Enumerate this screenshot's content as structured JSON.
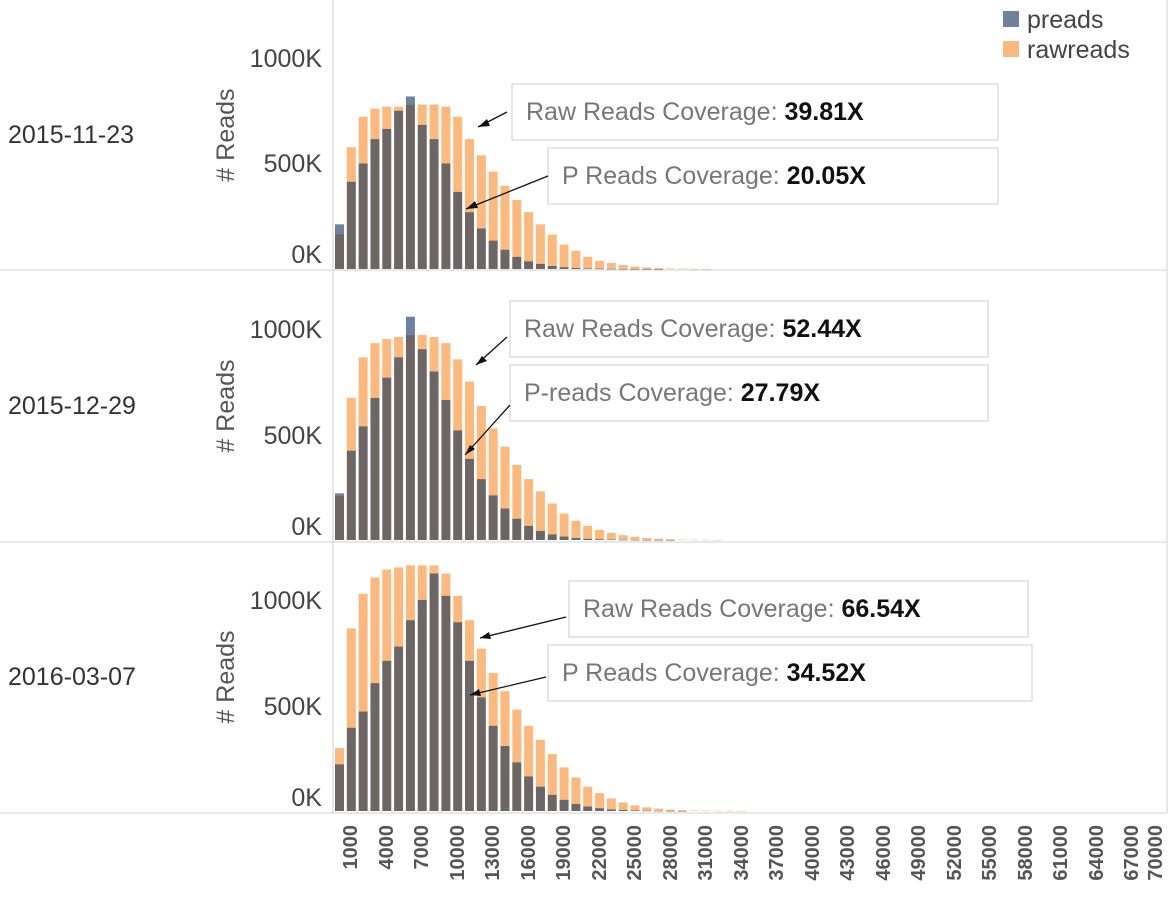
{
  "colors": {
    "preads": "#6e819e",
    "rawreads": "#fdb97d",
    "overlap": "#6e6565",
    "grid": "#d0d0d0",
    "annotation_border": "#cccccc"
  },
  "legend": [
    {
      "name": "preads",
      "color": "#6e819e"
    },
    {
      "name": "rawreads",
      "color": "#fdb97d"
    }
  ],
  "chart_data": {
    "type": "bar",
    "title": "",
    "xlabel": "",
    "ylabel": "# Reads",
    "ylim": [
      0,
      1230000
    ],
    "bin_start": 1000,
    "bin_width": 1000,
    "yticks": [
      {
        "value": 0,
        "label": "0K"
      },
      {
        "value": 500000,
        "label": "500K"
      },
      {
        "value": 1000000,
        "label": "1000K"
      }
    ],
    "x_tick_labels": [
      "1000",
      "4000",
      "7000",
      "10000",
      "13000",
      "16000",
      "19000",
      "22000",
      "25000",
      "28000",
      "31000",
      "34000",
      "37000",
      "40000",
      "43000",
      "46000",
      "49000",
      "52000",
      "55000",
      "58000",
      "61000",
      "64000",
      "67000",
      "70000"
    ],
    "panels": [
      {
        "row_label": "2015-11-23",
        "series": [
          {
            "name": "preads",
            "values": [
              220000,
              430000,
              520000,
              640000,
              690000,
              780000,
              850000,
              710000,
              640000,
              520000,
              380000,
              280000,
              200000,
              140000,
              95000,
              60000,
              38000,
              25000,
              15000,
              9000,
              5000,
              3000,
              2000,
              1000,
              500,
              300,
              200,
              100
            ]
          },
          {
            "name": "rawreads",
            "values": [
              170000,
              600000,
              750000,
              790000,
              800000,
              800000,
              810000,
              810000,
              810000,
              800000,
              750000,
              640000,
              560000,
              480000,
              410000,
              340000,
              280000,
              220000,
              170000,
              120000,
              90000,
              60000,
              40000,
              30000,
              20000,
              12000,
              8000,
              5000,
              3000,
              2000,
              1000,
              500
            ]
          }
        ],
        "annotations": [
          {
            "label": "Raw Reads Coverage: ",
            "value": "39.81X"
          },
          {
            "label": "P Reads Coverage: ",
            "value": "20.05X"
          }
        ]
      },
      {
        "row_label": "2015-12-29",
        "series": [
          {
            "name": "preads",
            "values": [
              230000,
              440000,
              560000,
              700000,
              800000,
              900000,
              1100000,
              940000,
              830000,
              690000,
              540000,
              400000,
              300000,
              220000,
              155000,
              105000,
              70000,
              45000,
              28000,
              17000,
              10000,
              6000,
              4000,
              2000,
              1000,
              600,
              300,
              200,
              100
            ]
          },
          {
            "name": "rawreads",
            "values": [
              220000,
              700000,
              900000,
              970000,
              990000,
              1000000,
              1010000,
              1010000,
              1000000,
              970000,
              890000,
              780000,
              660000,
              550000,
              460000,
              370000,
              300000,
              240000,
              180000,
              130000,
              95000,
              70000,
              50000,
              35000,
              24000,
              16000,
              10000,
              7000,
              4000,
              2500,
              1500,
              800,
              400
            ]
          }
        ],
        "annotations": [
          {
            "label": "Raw Reads Coverage: ",
            "value": "52.44X"
          },
          {
            "label": "P-reads Coverage: ",
            "value": "27.79X"
          }
        ]
      },
      {
        "row_label": "2016-03-07",
        "series": [
          {
            "name": "preads",
            "values": [
              230000,
              410000,
              490000,
              630000,
              740000,
              810000,
              940000,
              1040000,
              1170000,
              1060000,
              930000,
              740000,
              560000,
              420000,
              320000,
              240000,
              170000,
              120000,
              80000,
              55000,
              35000,
              22000,
              14000,
              8000,
              5000,
              3000,
              1500,
              800,
              400,
              200
            ]
          },
          {
            "name": "rawreads",
            "values": [
              310000,
              900000,
              1070000,
              1150000,
              1190000,
              1200000,
              1210000,
              1210000,
              1210000,
              1170000,
              1060000,
              940000,
              800000,
              680000,
              590000,
              500000,
              420000,
              350000,
              280000,
              215000,
              165000,
              120000,
              88000,
              62000,
              42000,
              28000,
              18000,
              12000,
              7000,
              4500,
              2800,
              1600,
              900,
              500,
              300
            ]
          }
        ],
        "annotations": [
          {
            "label": "Raw Reads Coverage: ",
            "value": "66.54X"
          },
          {
            "label": "P Reads Coverage: ",
            "value": "34.52X"
          }
        ]
      }
    ]
  }
}
